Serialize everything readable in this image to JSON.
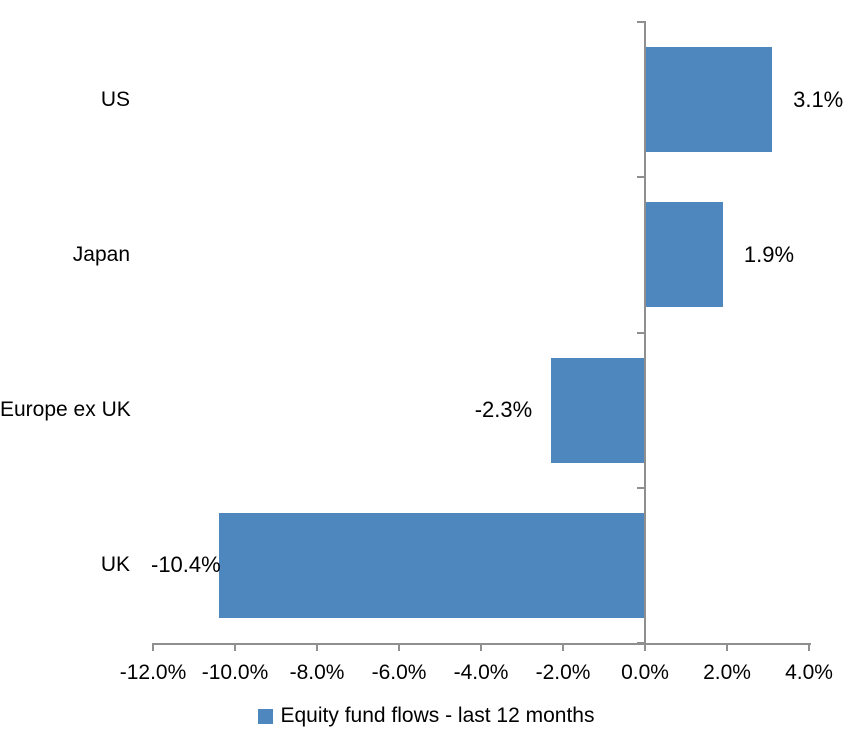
{
  "chart_data": {
    "type": "bar",
    "orientation": "horizontal",
    "title": "",
    "categories": [
      "US",
      "Japan",
      "Europe ex UK",
      "UK"
    ],
    "values": [
      3.1,
      1.9,
      -2.3,
      -10.4
    ],
    "value_labels": [
      "3.1%",
      "1.9%",
      "-2.3%",
      "-10.4%"
    ],
    "x_axis": {
      "min": -12,
      "max": 4,
      "step": 2,
      "tick_labels": [
        "-12.0%",
        "-10.0%",
        "-8.0%",
        "-6.0%",
        "-4.0%",
        "-2.0%",
        "0.0%",
        "2.0%",
        "4.0%"
      ]
    },
    "grid": false,
    "legend": {
      "label": "Equity fund flows - last 12 months",
      "position": "bottom"
    },
    "colors": {
      "bar": "#4d87be",
      "axis": "#8f8f8f",
      "text": "#000000",
      "background": "#ffffff"
    }
  }
}
